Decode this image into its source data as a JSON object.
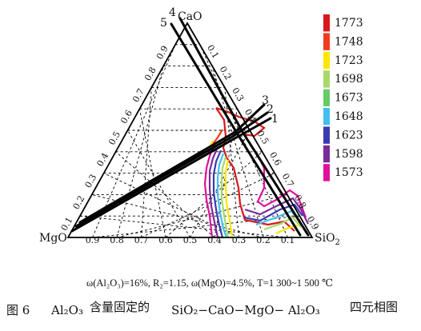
{
  "vertices": {
    "top": "CaO",
    "left": "MgO",
    "right": "SiO2"
  },
  "tick_values": [
    "0.1",
    "0.2",
    "0.3",
    "0.4",
    "0.5",
    "0.6",
    "0.7",
    "0.8",
    "0.9"
  ],
  "series_numbers": [
    "1",
    "2",
    "3",
    "4",
    "5"
  ],
  "legend": [
    {
      "label": "1773",
      "color": "#d7191c"
    },
    {
      "label": "1748",
      "color": "#f03b20"
    },
    {
      "label": "1723",
      "color": "#ffe600"
    },
    {
      "label": "1698",
      "color": "#a6d96a"
    },
    {
      "label": "1673",
      "color": "#66cc66"
    },
    {
      "label": "1648",
      "color": "#40c0f0"
    },
    {
      "label": "1623",
      "color": "#3a3ab0"
    },
    {
      "label": "1598",
      "color": "#7b2a9a"
    },
    {
      "label": "1573",
      "color": "#e0109a"
    }
  ],
  "conditions": "ω(Al₂O₃)=16%, R₂=1.15, ω(MgO)=4.5%, T=1 300~1 500 ℃",
  "caption": {
    "figure_no": "图 6",
    "part1": "Al₂O₃",
    "part2": "含量固定的",
    "part3": "SiO₂−CaO−MgO− Al₂O₃",
    "part4": "四元相图"
  }
}
